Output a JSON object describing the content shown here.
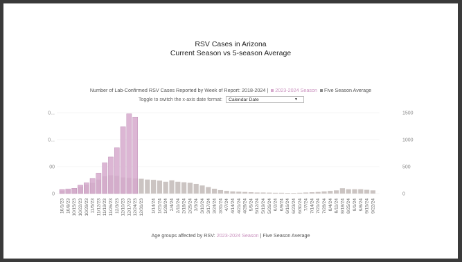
{
  "slide": {
    "title_line1": "RSV Cases in Arizona",
    "title_line2": "Current Season vs 5-season Average"
  },
  "chart_header": {
    "prefix": "Number of Lab-Confirmed RSV Cases Reported by Week of Report: 2018-2024 |",
    "current_label": "2023-2024 Season",
    "average_label": "Five Season Average"
  },
  "toggle": {
    "label": "Toggle to switch the x-axis date format:",
    "selected": "Calendar Date"
  },
  "age_groups": {
    "label": "Age groups affected by RSV:",
    "current_label": "2023-2024 Season",
    "separator": "|",
    "average_label": "Five Season Average"
  },
  "colors": {
    "current": "#d6a9cd",
    "average": "#cbc4c2",
    "pink_text": "#c98fbd"
  },
  "chart_data": {
    "type": "bar",
    "categories": [
      "10/1/23",
      "10/8/23",
      "10/15/23",
      "10/22/23",
      "10/29/23",
      "11/5/23",
      "11/12/23",
      "11/19/23",
      "11/26/23",
      "12/3/23",
      "12/10/23",
      "12/17/23",
      "12/24/23",
      "12/31/23",
      "1/7/24",
      "1/14/24",
      "1/21/24",
      "1/28/24",
      "2/4/24",
      "2/11/24",
      "2/18/24",
      "2/25/24",
      "3/3/24",
      "3/10/24",
      "3/17/24",
      "3/24/24",
      "3/31/24",
      "4/7/24",
      "4/14/24",
      "4/21/24",
      "4/28/24",
      "5/5/24",
      "5/12/24",
      "5/19/24",
      "5/26/24",
      "6/2/24",
      "6/9/24",
      "6/16/24",
      "6/23/24",
      "6/30/24",
      "7/7/24",
      "7/14/24",
      "7/21/24",
      "7/28/24",
      "8/4/24",
      "8/11/24",
      "8/18/24",
      "8/25/24",
      "9/1/24",
      "9/8/24",
      "9/15/24",
      "9/22/24"
    ],
    "tick_labels": [
      "10/1/23",
      "10/8/23",
      "10/15/23",
      "10/22/23",
      "10/29/23",
      "11/5/23",
      "11/12/23",
      "11/19/23",
      "11/26/23",
      "12/3/23",
      "12/10/23",
      "12/17/23",
      "12/24/23",
      "12/31/23",
      "",
      "1/14/24",
      "1/21/24",
      "1/28/24",
      "2/4/24",
      "2/11/24",
      "2/18/24",
      "2/25/24",
      "3/3/24",
      "3/10/24",
      "3/17/24",
      "3/24/24",
      "3/31/24",
      "4/7/24",
      "4/14/24",
      "4/21/24",
      "4/28/24",
      "5/5/24",
      "5/12/24",
      "5/19/24",
      "5/26/24",
      "6/2/24",
      "6/9/24",
      "6/16/24",
      "6/23/24",
      "6/30/24",
      "7/7/24",
      "7/14/24",
      "7/21/24",
      "7/28/24",
      "8/4/24",
      "8/11/24",
      "8/18/24",
      "8/25/24",
      "9/1/24",
      "9/8/24",
      "9/15/24",
      "9/22/24"
    ],
    "series": [
      {
        "name": "2023-2024 Season",
        "values": [
          75,
          85,
          100,
          155,
          200,
          280,
          380,
          570,
          680,
          850,
          1240,
          1480,
          1420,
          null,
          null,
          null,
          null,
          null,
          null,
          null,
          null,
          null,
          null,
          null,
          null,
          null,
          null,
          null,
          null,
          null,
          null,
          null,
          null,
          null,
          null,
          null,
          null,
          null,
          null,
          null,
          null,
          null,
          null,
          null,
          null,
          null,
          null,
          null,
          null,
          null,
          null,
          null
        ]
      },
      {
        "name": "Five Season Average",
        "values": [
          55,
          70,
          95,
          130,
          165,
          200,
          260,
          320,
          340,
          330,
          300,
          290,
          280,
          275,
          260,
          255,
          240,
          220,
          245,
          220,
          210,
          200,
          180,
          150,
          120,
          90,
          65,
          50,
          40,
          35,
          30,
          25,
          20,
          20,
          18,
          15,
          15,
          12,
          12,
          15,
          20,
          25,
          30,
          40,
          50,
          60,
          100,
          80,
          80,
          80,
          70,
          60
        ]
      }
    ],
    "y_ticks": [
      0,
      500,
      1000,
      1500
    ],
    "ylim": [
      0,
      1600
    ],
    "left_tick_labels": [
      "0",
      "00",
      "0...",
      "0..."
    ]
  }
}
